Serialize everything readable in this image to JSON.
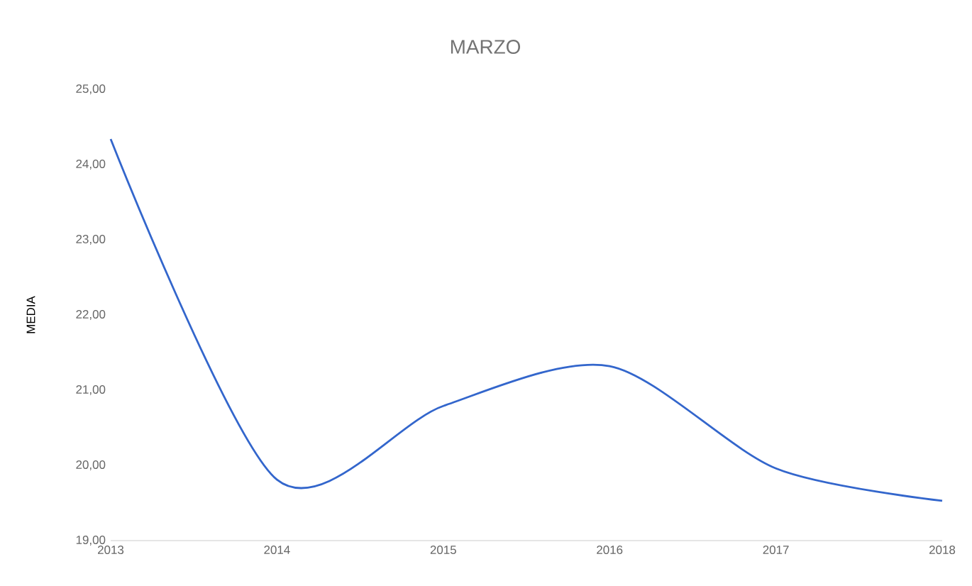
{
  "chart_data": {
    "type": "line",
    "title": "MARZO",
    "ylabel": "MEDIA",
    "x": [
      2013,
      2014,
      2015,
      2016,
      2017,
      2018
    ],
    "series": [
      {
        "color": "#3366cc",
        "values": [
          24.34,
          19.81,
          20.79,
          21.32,
          19.96,
          19.53
        ]
      }
    ],
    "xlim": [
      2013,
      2018
    ],
    "xticks": [
      2013,
      2014,
      2015,
      2016,
      2017,
      2018
    ],
    "ylim": [
      19,
      25
    ],
    "yticks": [
      {
        "value": 19,
        "label": "19,00"
      },
      {
        "value": 20,
        "label": "20,00"
      },
      {
        "value": 21,
        "label": "21,00"
      },
      {
        "value": 22,
        "label": "22,00"
      },
      {
        "value": 23,
        "label": "23,00"
      },
      {
        "value": 24,
        "label": "24,00"
      },
      {
        "value": 25,
        "label": "25,00"
      }
    ],
    "grid": false,
    "marker": "none",
    "line_style": "solid"
  }
}
